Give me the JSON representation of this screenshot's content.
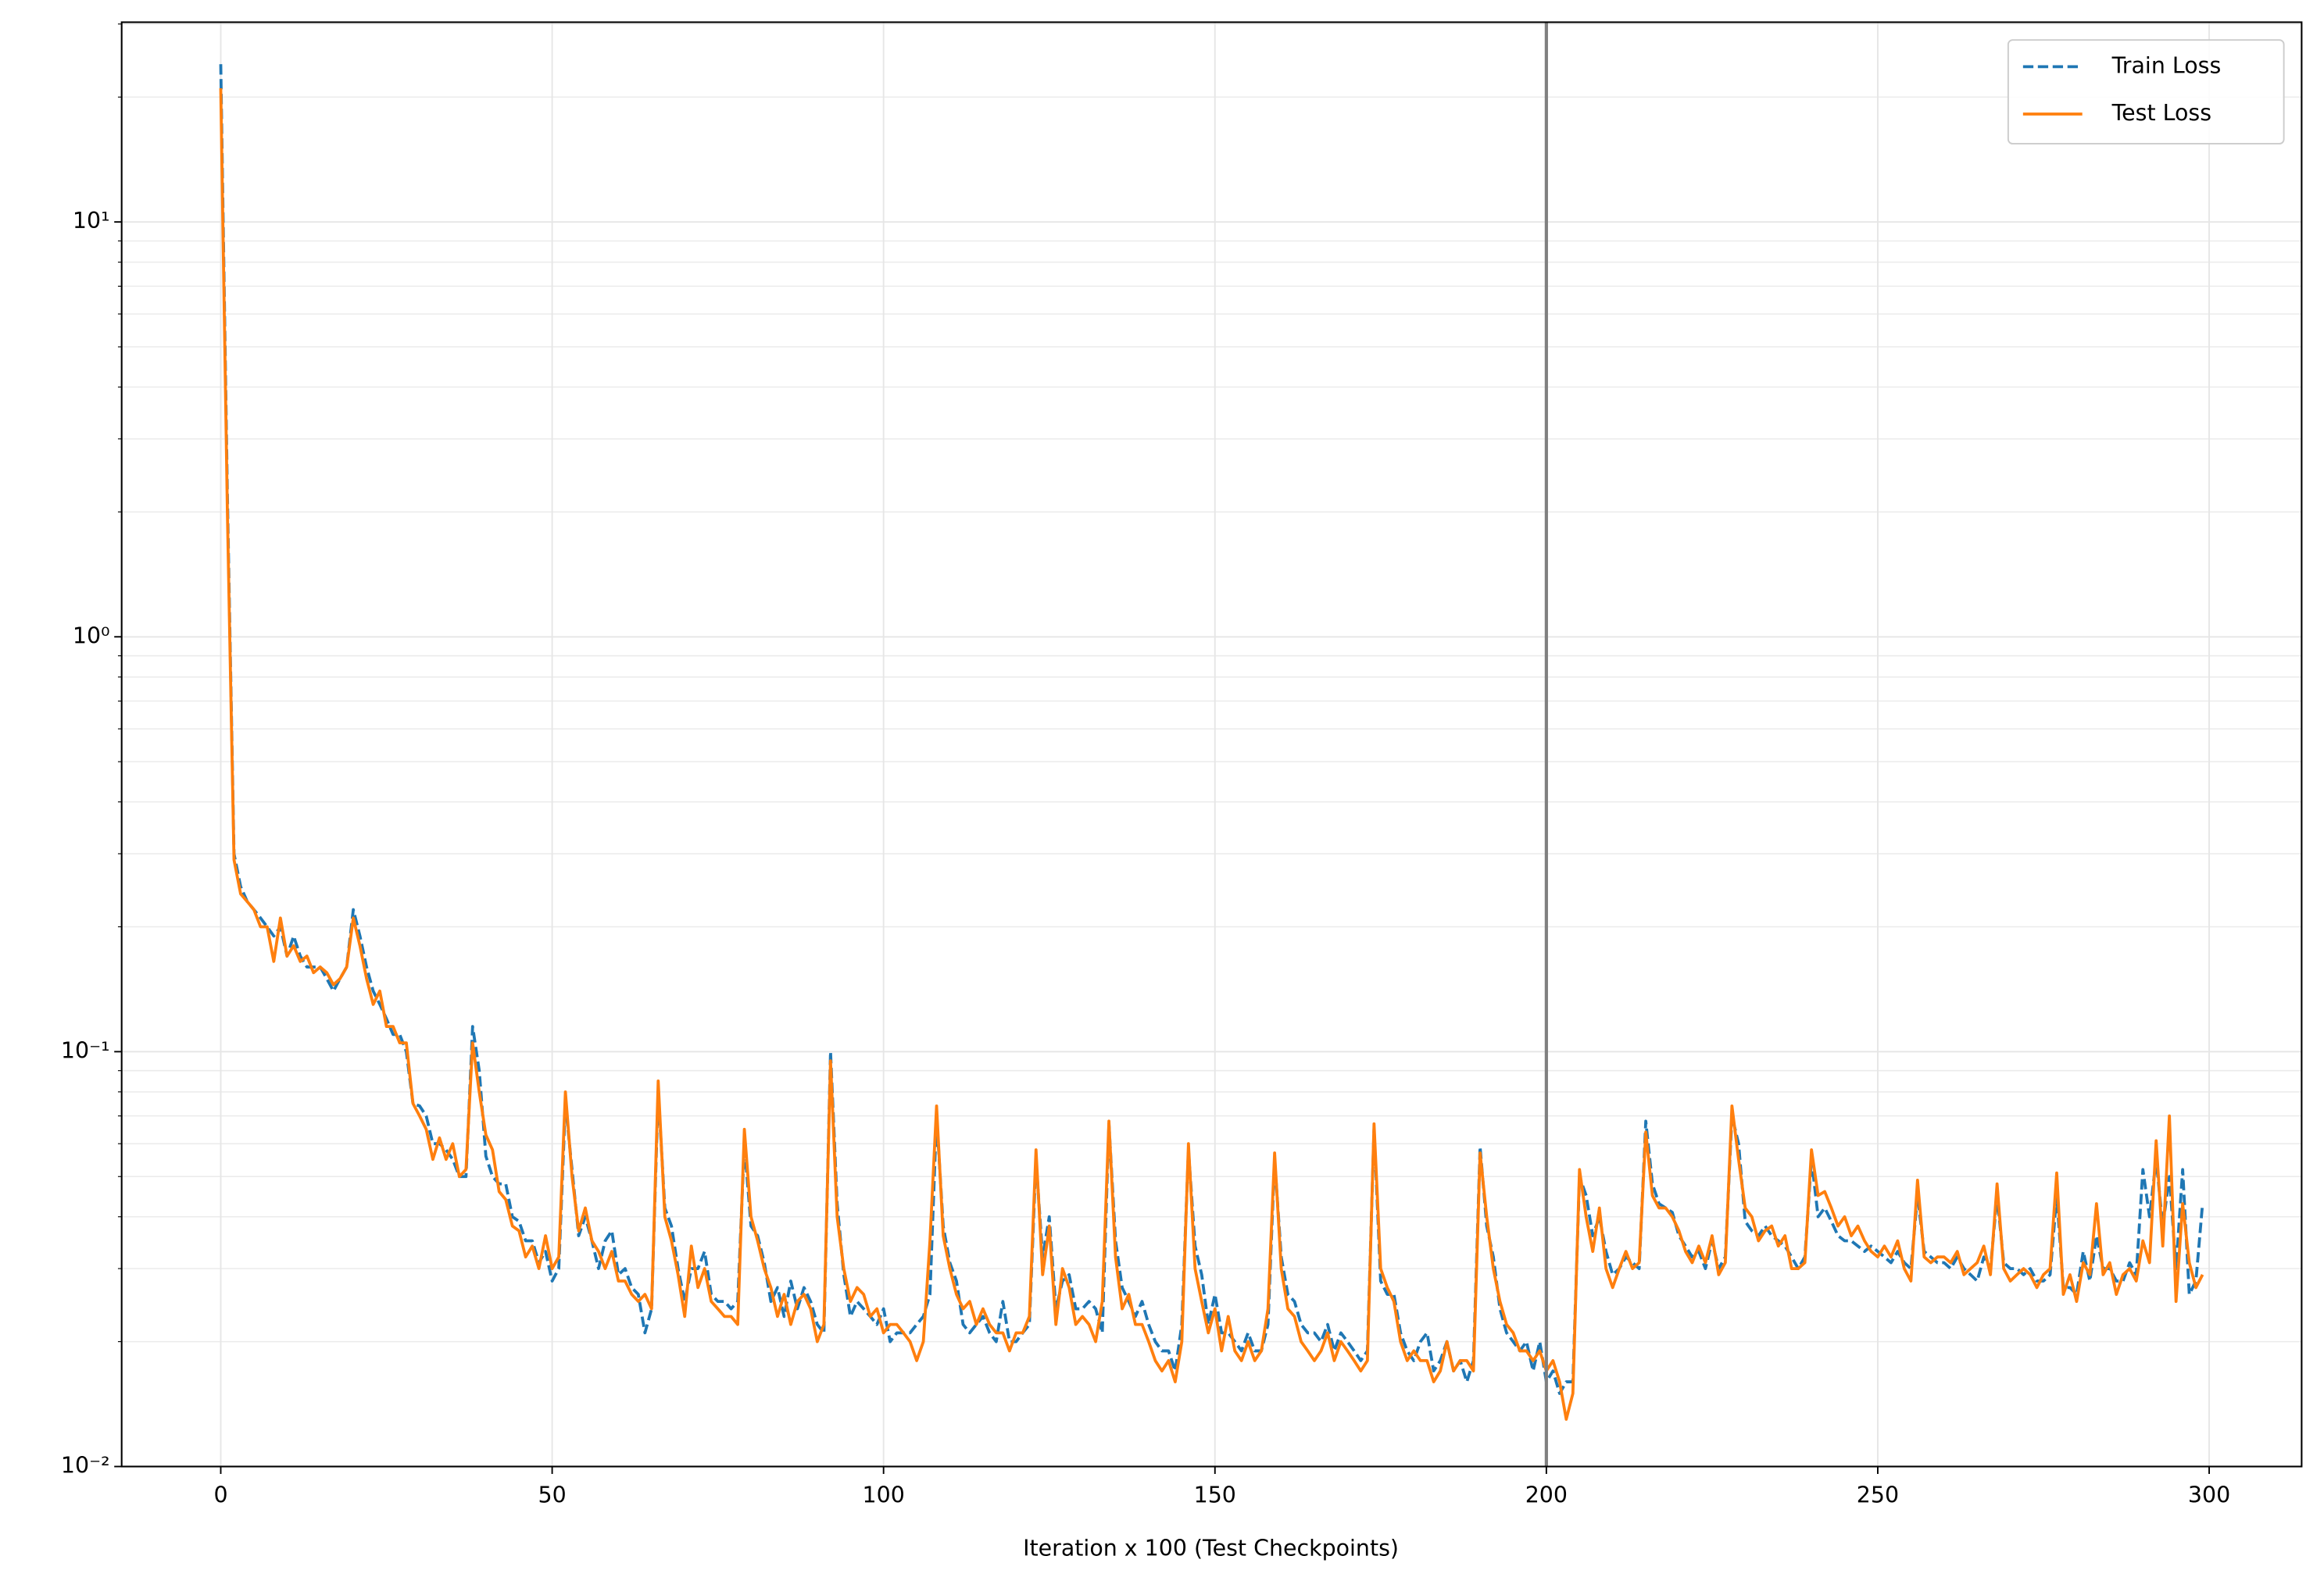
{
  "chart_data": {
    "type": "line",
    "xlabel": "Iteration x 100 (Test Checkpoints)",
    "x": [
      0,
      1,
      2,
      3,
      4,
      5,
      6,
      7,
      8,
      9,
      10,
      11,
      12,
      13,
      14,
      15,
      16,
      17,
      18,
      19,
      20,
      21,
      22,
      23,
      24,
      25,
      26,
      27,
      28,
      29,
      30,
      31,
      32,
      33,
      34,
      35,
      36,
      37,
      38,
      39,
      40,
      41,
      42,
      43,
      44,
      45,
      46,
      47,
      48,
      49,
      50,
      51,
      52,
      53,
      54,
      55,
      56,
      57,
      58,
      59,
      60,
      61,
      62,
      63,
      64,
      65,
      66,
      67,
      68,
      69,
      70,
      71,
      72,
      73,
      74,
      75,
      76,
      77,
      78,
      79,
      80,
      81,
      82,
      83,
      84,
      85,
      86,
      87,
      88,
      89,
      90,
      91,
      92,
      93,
      94,
      95,
      96,
      97,
      98,
      99,
      100,
      101,
      102,
      103,
      104,
      105,
      106,
      107,
      108,
      109,
      110,
      111,
      112,
      113,
      114,
      115,
      116,
      117,
      118,
      119,
      120,
      121,
      122,
      123,
      124,
      125,
      126,
      127,
      128,
      129,
      130,
      131,
      132,
      133,
      134,
      135,
      136,
      137,
      138,
      139,
      140,
      141,
      142,
      143,
      144,
      145,
      146,
      147,
      148,
      149,
      150,
      151,
      152,
      153,
      154,
      155,
      156,
      157,
      158,
      159,
      160,
      161,
      162,
      163,
      164,
      165,
      166,
      167,
      168,
      169,
      170,
      171,
      172,
      173,
      174,
      175,
      176,
      177,
      178,
      179,
      180,
      181,
      182,
      183,
      184,
      185,
      186,
      187,
      188,
      189,
      190,
      191,
      192,
      193,
      194,
      195,
      196,
      197,
      198,
      199,
      200,
      201,
      202,
      203,
      204,
      205,
      206,
      207,
      208,
      209,
      210,
      211,
      212,
      213,
      214,
      215,
      216,
      217,
      218,
      219,
      220,
      221,
      222,
      223,
      224,
      225,
      226,
      227,
      228,
      229,
      230,
      231,
      232,
      233,
      234,
      235,
      236,
      237,
      238,
      239,
      240,
      241,
      242,
      243,
      244,
      245,
      246,
      247,
      248,
      249,
      250,
      251,
      252,
      253,
      254,
      255,
      256,
      257,
      258,
      259,
      260,
      261,
      262,
      263,
      264,
      265,
      266,
      267,
      268,
      269,
      270,
      271,
      272,
      273,
      274,
      275,
      276,
      277,
      278,
      279,
      280,
      281,
      282,
      283,
      284,
      285,
      286,
      287,
      288,
      289,
      290,
      291,
      292,
      293,
      294,
      295,
      296,
      297,
      298,
      299
    ],
    "series": [
      {
        "name": "Train Loss",
        "color": "#1f77b4",
        "dash": true,
        "values": [
          24,
          2.2,
          0.3,
          0.25,
          0.23,
          0.22,
          0.21,
          0.2,
          0.19,
          0.2,
          0.17,
          0.19,
          0.17,
          0.16,
          0.16,
          0.16,
          0.15,
          0.14,
          0.15,
          0.16,
          0.22,
          0.19,
          0.16,
          0.14,
          0.13,
          0.12,
          0.11,
          0.11,
          0.1,
          0.075,
          0.074,
          0.07,
          0.06,
          0.06,
          0.058,
          0.055,
          0.05,
          0.05,
          0.115,
          0.09,
          0.056,
          0.05,
          0.048,
          0.048,
          0.04,
          0.039,
          0.035,
          0.035,
          0.031,
          0.033,
          0.028,
          0.03,
          0.075,
          0.052,
          0.036,
          0.04,
          0.035,
          0.03,
          0.035,
          0.037,
          0.029,
          0.03,
          0.027,
          0.026,
          0.021,
          0.024,
          0.08,
          0.042,
          0.038,
          0.03,
          0.025,
          0.03,
          0.03,
          0.033,
          0.026,
          0.025,
          0.025,
          0.024,
          0.025,
          0.06,
          0.038,
          0.036,
          0.031,
          0.025,
          0.027,
          0.023,
          0.028,
          0.024,
          0.027,
          0.025,
          0.022,
          0.021,
          0.1,
          0.043,
          0.029,
          0.023,
          0.025,
          0.024,
          0.023,
          0.022,
          0.024,
          0.02,
          0.021,
          0.021,
          0.021,
          0.022,
          0.023,
          0.026,
          0.07,
          0.038,
          0.031,
          0.028,
          0.022,
          0.021,
          0.022,
          0.023,
          0.021,
          0.02,
          0.025,
          0.02,
          0.02,
          0.021,
          0.022,
          0.055,
          0.032,
          0.04,
          0.024,
          0.028,
          0.029,
          0.024,
          0.024,
          0.025,
          0.024,
          0.021,
          0.067,
          0.035,
          0.027,
          0.025,
          0.023,
          0.025,
          0.022,
          0.02,
          0.019,
          0.019,
          0.017,
          0.022,
          0.058,
          0.034,
          0.029,
          0.022,
          0.026,
          0.021,
          0.021,
          0.02,
          0.019,
          0.021,
          0.019,
          0.019,
          0.022,
          0.055,
          0.032,
          0.026,
          0.025,
          0.022,
          0.021,
          0.021,
          0.02,
          0.022,
          0.019,
          0.021,
          0.02,
          0.019,
          0.018,
          0.019,
          0.065,
          0.028,
          0.026,
          0.026,
          0.021,
          0.019,
          0.018,
          0.02,
          0.021,
          0.017,
          0.018,
          0.02,
          0.017,
          0.018,
          0.016,
          0.018,
          0.059,
          0.038,
          0.032,
          0.024,
          0.021,
          0.02,
          0.019,
          0.02,
          0.017,
          0.02,
          0.016,
          0.017,
          0.015,
          0.016,
          0.016,
          0.05,
          0.045,
          0.036,
          0.04,
          0.033,
          0.029,
          0.03,
          0.032,
          0.031,
          0.03,
          0.068,
          0.048,
          0.043,
          0.042,
          0.041,
          0.036,
          0.034,
          0.032,
          0.033,
          0.03,
          0.035,
          0.03,
          0.032,
          0.07,
          0.06,
          0.039,
          0.037,
          0.036,
          0.038,
          0.036,
          0.035,
          0.034,
          0.032,
          0.03,
          0.032,
          0.055,
          0.04,
          0.042,
          0.039,
          0.036,
          0.035,
          0.035,
          0.034,
          0.033,
          0.034,
          0.033,
          0.032,
          0.031,
          0.033,
          0.031,
          0.03,
          0.045,
          0.033,
          0.032,
          0.031,
          0.031,
          0.03,
          0.032,
          0.03,
          0.029,
          0.028,
          0.032,
          0.03,
          0.045,
          0.031,
          0.03,
          0.03,
          0.029,
          0.03,
          0.028,
          0.028,
          0.029,
          0.045,
          0.027,
          0.027,
          0.026,
          0.033,
          0.028,
          0.036,
          0.03,
          0.03,
          0.028,
          0.028,
          0.031,
          0.029,
          0.052,
          0.04,
          0.055,
          0.038,
          0.05,
          0.03,
          0.052,
          0.026,
          0.028,
          0.043
        ]
      },
      {
        "name": "Test Loss",
        "color": "#ff7f0e",
        "dash": false,
        "values": [
          21,
          2.0,
          0.29,
          0.24,
          0.23,
          0.22,
          0.2,
          0.2,
          0.165,
          0.21,
          0.17,
          0.18,
          0.165,
          0.17,
          0.155,
          0.16,
          0.155,
          0.145,
          0.15,
          0.16,
          0.21,
          0.18,
          0.15,
          0.13,
          0.14,
          0.115,
          0.115,
          0.105,
          0.105,
          0.075,
          0.07,
          0.065,
          0.055,
          0.062,
          0.055,
          0.06,
          0.05,
          0.052,
          0.105,
          0.08,
          0.063,
          0.058,
          0.046,
          0.044,
          0.038,
          0.037,
          0.032,
          0.034,
          0.03,
          0.036,
          0.03,
          0.032,
          0.08,
          0.05,
          0.037,
          0.042,
          0.035,
          0.033,
          0.03,
          0.033,
          0.028,
          0.028,
          0.026,
          0.025,
          0.026,
          0.024,
          0.085,
          0.04,
          0.035,
          0.029,
          0.023,
          0.034,
          0.027,
          0.03,
          0.025,
          0.024,
          0.023,
          0.023,
          0.022,
          0.065,
          0.04,
          0.035,
          0.03,
          0.027,
          0.023,
          0.026,
          0.022,
          0.025,
          0.026,
          0.024,
          0.02,
          0.022,
          0.095,
          0.04,
          0.03,
          0.025,
          0.027,
          0.026,
          0.023,
          0.024,
          0.021,
          0.022,
          0.022,
          0.021,
          0.02,
          0.018,
          0.02,
          0.035,
          0.074,
          0.036,
          0.03,
          0.026,
          0.024,
          0.025,
          0.022,
          0.024,
          0.022,
          0.021,
          0.021,
          0.019,
          0.021,
          0.021,
          0.023,
          0.058,
          0.029,
          0.038,
          0.022,
          0.03,
          0.027,
          0.022,
          0.023,
          0.022,
          0.02,
          0.025,
          0.068,
          0.032,
          0.024,
          0.026,
          0.022,
          0.022,
          0.02,
          0.018,
          0.017,
          0.018,
          0.016,
          0.02,
          0.06,
          0.03,
          0.025,
          0.021,
          0.024,
          0.019,
          0.023,
          0.019,
          0.018,
          0.02,
          0.018,
          0.019,
          0.024,
          0.057,
          0.03,
          0.024,
          0.023,
          0.02,
          0.019,
          0.018,
          0.019,
          0.021,
          0.018,
          0.02,
          0.019,
          0.018,
          0.017,
          0.018,
          0.067,
          0.03,
          0.027,
          0.025,
          0.02,
          0.018,
          0.019,
          0.018,
          0.018,
          0.016,
          0.017,
          0.02,
          0.017,
          0.018,
          0.018,
          0.017,
          0.057,
          0.04,
          0.03,
          0.025,
          0.022,
          0.021,
          0.019,
          0.019,
          0.018,
          0.019,
          0.017,
          0.018,
          0.016,
          0.013,
          0.015,
          0.052,
          0.04,
          0.033,
          0.042,
          0.03,
          0.027,
          0.03,
          0.033,
          0.03,
          0.031,
          0.064,
          0.045,
          0.042,
          0.042,
          0.04,
          0.037,
          0.033,
          0.031,
          0.034,
          0.031,
          0.036,
          0.029,
          0.031,
          0.074,
          0.055,
          0.042,
          0.04,
          0.035,
          0.037,
          0.038,
          0.034,
          0.036,
          0.03,
          0.03,
          0.031,
          0.058,
          0.045,
          0.046,
          0.042,
          0.038,
          0.04,
          0.036,
          0.038,
          0.035,
          0.033,
          0.032,
          0.034,
          0.032,
          0.035,
          0.03,
          0.028,
          0.049,
          0.032,
          0.031,
          0.032,
          0.032,
          0.031,
          0.033,
          0.029,
          0.03,
          0.031,
          0.034,
          0.029,
          0.048,
          0.03,
          0.028,
          0.029,
          0.03,
          0.029,
          0.027,
          0.029,
          0.03,
          0.051,
          0.026,
          0.029,
          0.025,
          0.031,
          0.029,
          0.043,
          0.029,
          0.031,
          0.026,
          0.029,
          0.03,
          0.028,
          0.035,
          0.031,
          0.061,
          0.034,
          0.07,
          0.025,
          0.043,
          0.031,
          0.027,
          0.029
        ]
      }
    ],
    "xlim": [
      -14.95,
      313.95
    ],
    "xticks": [
      0,
      50,
      100,
      150,
      200,
      250,
      300
    ],
    "ylim": [
      0.01,
      30.3
    ],
    "log_y": true,
    "yticks": [
      {
        "value": 0.01,
        "label": "10⁻²"
      },
      {
        "value": 0.1,
        "label": "10⁻¹"
      },
      {
        "value": 1,
        "label": "10⁰"
      },
      {
        "value": 10,
        "label": "10¹"
      }
    ],
    "yticks_minor": [
      0.02,
      0.03,
      0.04,
      0.05,
      0.06,
      0.07,
      0.08,
      0.09,
      0.2,
      0.3,
      0.4,
      0.5,
      0.6,
      0.7,
      0.8,
      0.9,
      2,
      3,
      4,
      5,
      6,
      7,
      8,
      9,
      20,
      30
    ],
    "grid": true,
    "vline": {
      "x": 200,
      "color": "#808080"
    },
    "legend": "upper right"
  }
}
